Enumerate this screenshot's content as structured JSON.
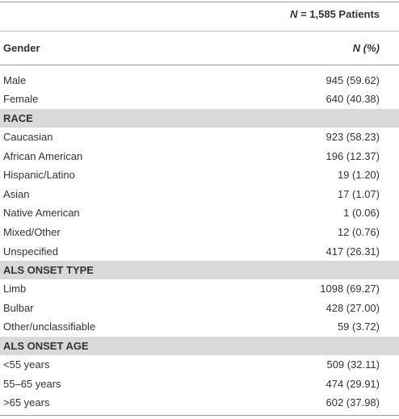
{
  "header": {
    "count_symbol": "N",
    "count_text": " = 1,585 Patients"
  },
  "columns": [
    "Gender",
    "N (%)"
  ],
  "gender_rows": [
    [
      "Male",
      "945 (59.62)"
    ],
    [
      "Female",
      "640 (40.38)"
    ]
  ],
  "sections": [
    {
      "title": "RACE",
      "rows": [
        [
          "Caucasian",
          "923 (58.23)"
        ],
        [
          "African American",
          "196 (12.37)"
        ],
        [
          "Hispanic/Latino",
          "19 (1.20)"
        ],
        [
          "Asian",
          "17 (1.07)"
        ],
        [
          "Native American",
          "1 (0.06)"
        ],
        [
          "Mixed/Other",
          "12 (0.76)"
        ],
        [
          "Unspecified",
          "417 (26.31)"
        ]
      ]
    },
    {
      "title": "ALS ONSET TYPE",
      "rows": [
        [
          "Limb",
          "1098 (69.27)"
        ],
        [
          "Bulbar",
          "428 (27.00)"
        ],
        [
          "Other/unclassifiable",
          "59 (3.72)"
        ]
      ]
    },
    {
      "title": "ALS ONSET AGE",
      "rows": [
        [
          "<55 years",
          "509 (32.11)"
        ],
        [
          "55–65 years",
          "474 (29.91)"
        ],
        [
          ">65 years",
          "602 (37.98)"
        ]
      ]
    }
  ]
}
